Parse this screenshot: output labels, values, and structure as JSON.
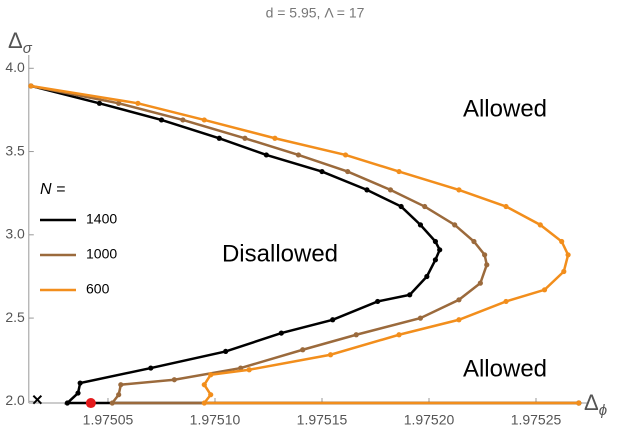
{
  "chart_data": {
    "type": "line",
    "title": "d = 5.95,    Λ = 17",
    "xlabel": {
      "symbol": "Δ",
      "subscript": "ϕ"
    },
    "ylabel": {
      "symbol": "Δ",
      "subscript": "σ"
    },
    "legend_title": "N =",
    "annotations": [
      "Allowed",
      "Disallowed",
      "Allowed"
    ],
    "xlim": [
      1.975013,
      1.97527
    ],
    "ylim": [
      1.99,
      4.09
    ],
    "xticks": [
      1.97505,
      {
        "value": 1.9751,
        "label": "1.97510"
      },
      1.97515,
      {
        "value": 1.9752,
        "label": "1.97520"
      },
      1.97525
    ],
    "yticks": [
      {
        "value": 2,
        "label": "2.0"
      },
      2.5,
      {
        "value": 3,
        "label": "3.0"
      },
      3.5,
      {
        "value": 4,
        "label": "4.0"
      }
    ],
    "series": [
      {
        "name": "1400",
        "color": "#000000",
        "x": [
          1.975014,
          1.975046,
          1.975075,
          1.975102,
          1.975124,
          1.97515,
          1.975171,
          1.975187,
          1.975196,
          1.975203,
          1.975205,
          1.975203,
          1.975199,
          1.975191,
          1.975176,
          1.975155,
          1.975131,
          1.975105,
          1.97507,
          1.975037,
          1.975036,
          1.975031,
          1.97527
        ],
        "values": [
          3.904,
          3.8,
          3.7,
          3.59,
          3.49,
          3.39,
          3.28,
          3.18,
          3.07,
          2.97,
          2.92,
          2.86,
          2.76,
          2.65,
          2.61,
          2.5,
          2.42,
          2.31,
          2.21,
          2.12,
          2.06,
          2.0,
          2.0
        ]
      },
      {
        "name": "1000",
        "color": "#9b6a3c",
        "x": [
          1.975014,
          1.975055,
          1.975085,
          1.975114,
          1.975139,
          1.975162,
          1.975182,
          1.975198,
          1.975212,
          1.975221,
          1.975226,
          1.975227,
          1.975224,
          1.975214,
          1.975196,
          1.975166,
          1.975141,
          1.975112,
          1.975081,
          1.975056,
          1.975055,
          1.975052,
          1.97527
        ],
        "values": [
          3.904,
          3.8,
          3.7,
          3.59,
          3.49,
          3.39,
          3.28,
          3.18,
          3.07,
          2.97,
          2.89,
          2.83,
          2.72,
          2.62,
          2.51,
          2.41,
          2.32,
          2.21,
          2.14,
          2.11,
          2.05,
          2.0,
          2.0
        ]
      },
      {
        "name": "600",
        "color": "#f28e1c",
        "x": [
          1.975014,
          1.975064,
          1.975095,
          1.975128,
          1.975161,
          1.975186,
          1.975214,
          1.975236,
          1.975252,
          1.975262,
          1.975265,
          1.975263,
          1.975254,
          1.975236,
          1.975214,
          1.975186,
          1.975154,
          1.975116,
          1.975098,
          1.975095,
          1.975098,
          1.975095,
          1.97527
        ],
        "values": [
          3.904,
          3.8,
          3.7,
          3.59,
          3.49,
          3.39,
          3.28,
          3.18,
          3.07,
          2.97,
          2.89,
          2.79,
          2.68,
          2.61,
          2.5,
          2.41,
          2.29,
          2.2,
          2.17,
          2.11,
          2.05,
          2.0,
          2.0
        ]
      }
    ],
    "markers": [
      {
        "x": 1.975042,
        "y": 2.0,
        "color": "#e41a1c",
        "shape": "circle"
      },
      {
        "x": 1.975017,
        "y": 2.02,
        "color": "#000000",
        "shape": "cross"
      }
    ]
  }
}
